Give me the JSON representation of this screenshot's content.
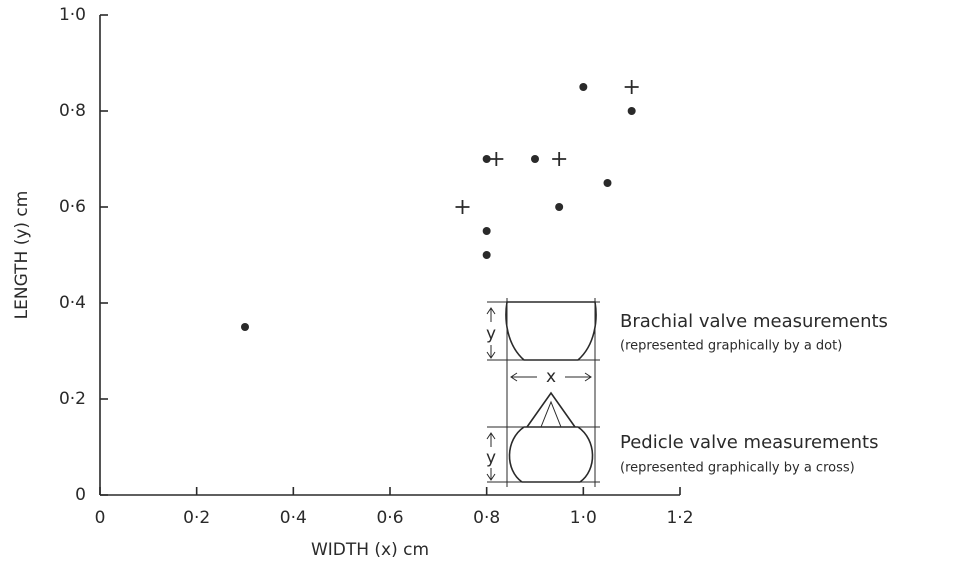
{
  "chart_data": {
    "type": "scatter",
    "x_label": "WIDTH (x) cm",
    "y_label": "LENGTH (y) cm",
    "xlim": [
      0,
      1.2
    ],
    "ylim": [
      0,
      1.0
    ],
    "xticks": [
      0,
      {
        "value": 0.2,
        "label": "0·2"
      },
      {
        "value": 0.4,
        "label": "0·4"
      },
      {
        "value": 0.6,
        "label": "0·6"
      },
      {
        "value": 0.8,
        "label": "0·8"
      },
      {
        "value": 1.0,
        "label": "1·0"
      },
      {
        "value": 1.2,
        "label": "1·2"
      }
    ],
    "yticks": [
      0,
      {
        "value": 0.2,
        "label": "0·2"
      },
      {
        "value": 0.4,
        "label": "0·4"
      },
      {
        "value": 0.6,
        "label": "0·6"
      },
      {
        "value": 0.8,
        "label": "0·8"
      },
      {
        "value": 1.0,
        "label": "1·0"
      }
    ],
    "color": "#2a2a2a",
    "series": [
      {
        "name": "Brachial valve measurements",
        "note": "(represented graphically by a dot)",
        "marker": "dot",
        "x": [
          0.3,
          0.8,
          0.8,
          0.8,
          0.9,
          0.95,
          1.0,
          1.05,
          1.1
        ],
        "values": [
          0.35,
          0.5,
          0.55,
          0.7,
          0.7,
          0.6,
          0.85,
          0.65,
          0.8
        ]
      },
      {
        "name": "Pedicle valve measurements",
        "note": "(represented graphically by a cross)",
        "marker": "cross",
        "x": [
          0.75,
          0.82,
          0.95,
          1.1
        ],
        "values": [
          0.6,
          0.7,
          0.7,
          0.85
        ]
      }
    ],
    "diagram_labels": {
      "y": "y",
      "x": "x"
    }
  }
}
